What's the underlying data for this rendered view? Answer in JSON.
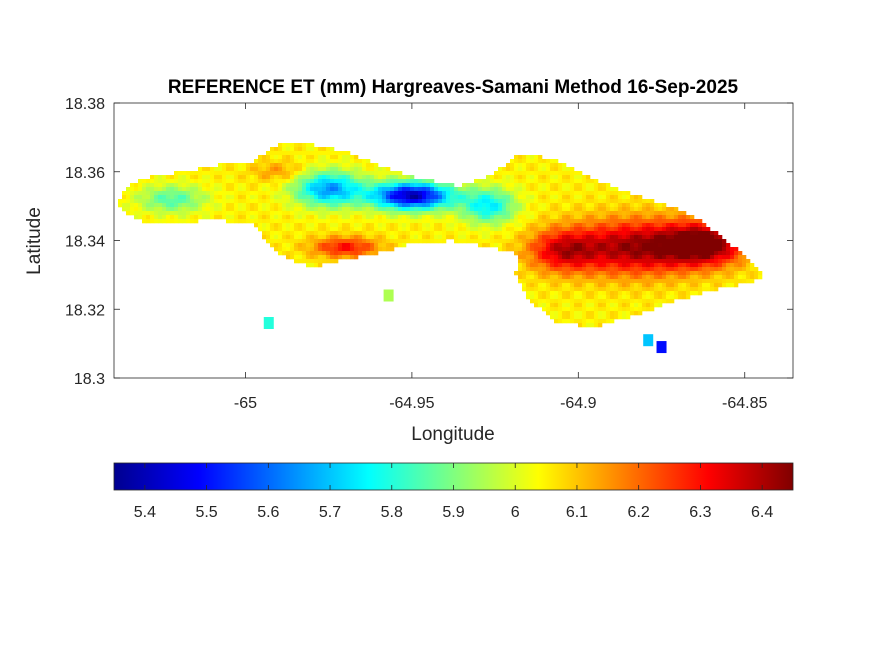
{
  "chart_data": {
    "type": "heatmap",
    "title": "REFERENCE ET (mm) Hargreaves-Samani Method  16-Sep-2025",
    "xlabel": "Longitude",
    "ylabel": "Latitude",
    "xlim": [
      -65.0395,
      -64.8355
    ],
    "ylim": [
      18.3,
      18.38
    ],
    "x_ticks": [
      -65,
      -64.95,
      -64.9,
      -64.85
    ],
    "x_tick_labels": [
      "-65",
      "-64.95",
      "-64.9",
      "-64.85"
    ],
    "y_ticks": [
      18.3,
      18.32,
      18.34,
      18.36,
      18.38
    ],
    "y_tick_labels": [
      "18.3",
      "18.32",
      "18.34",
      "18.36",
      "18.38"
    ],
    "colormap": "jet",
    "colorbar": {
      "orientation": "horizontal",
      "placement": "below",
      "range": [
        5.35,
        6.45
      ],
      "ticks": [
        5.4,
        5.5,
        5.6,
        5.7,
        5.8,
        5.9,
        6.0,
        6.1,
        6.2,
        6.3,
        6.4
      ],
      "tick_labels": [
        "5.4",
        "5.5",
        "5.6",
        "5.7",
        "5.8",
        "5.9",
        "6",
        "6.1",
        "6.2",
        "6.3",
        "6.4"
      ]
    },
    "island_outline": [
      [
        -65.039,
        18.351
      ],
      [
        -65.035,
        18.356
      ],
      [
        -65.028,
        18.359
      ],
      [
        -65.018,
        18.36
      ],
      [
        -65.008,
        18.362
      ],
      [
        -64.998,
        18.363
      ],
      [
        -64.99,
        18.368
      ],
      [
        -64.98,
        18.368
      ],
      [
        -64.97,
        18.366
      ],
      [
        -64.96,
        18.362
      ],
      [
        -64.948,
        18.358
      ],
      [
        -64.936,
        18.356
      ],
      [
        -64.926,
        18.359
      ],
      [
        -64.918,
        18.365
      ],
      [
        -64.908,
        18.364
      ],
      [
        -64.898,
        18.359
      ],
      [
        -64.885,
        18.354
      ],
      [
        -64.872,
        18.35
      ],
      [
        -64.862,
        18.345
      ],
      [
        -64.853,
        18.338
      ],
      [
        -64.846,
        18.332
      ],
      [
        -64.844,
        18.329
      ],
      [
        -64.852,
        18.327
      ],
      [
        -64.862,
        18.325
      ],
      [
        -64.872,
        18.322
      ],
      [
        -64.884,
        18.318
      ],
      [
        -64.895,
        18.315
      ],
      [
        -64.906,
        18.316
      ],
      [
        -64.915,
        18.323
      ],
      [
        -64.919,
        18.33
      ],
      [
        -64.918,
        18.336
      ],
      [
        -64.926,
        18.338
      ],
      [
        -64.938,
        18.34
      ],
      [
        -64.95,
        18.339
      ],
      [
        -64.962,
        18.336
      ],
      [
        -64.972,
        18.334
      ],
      [
        -64.98,
        18.332
      ],
      [
        -64.99,
        18.336
      ],
      [
        -64.998,
        18.345
      ],
      [
        -65.01,
        18.346
      ],
      [
        -65.022,
        18.345
      ],
      [
        -65.03,
        18.345
      ],
      [
        -65.036,
        18.348
      ]
    ],
    "value_field_centers": [
      {
        "lon": -64.95,
        "lat": 18.353,
        "value": 5.4,
        "spread": [
          0.012,
          0.004
        ]
      },
      {
        "lon": -64.975,
        "lat": 18.355,
        "value": 5.65,
        "spread": [
          0.01,
          0.005
        ]
      },
      {
        "lon": -64.927,
        "lat": 18.35,
        "value": 5.75,
        "spread": [
          0.008,
          0.005
        ]
      },
      {
        "lon": -65.022,
        "lat": 18.352,
        "value": 5.85,
        "spread": [
          0.01,
          0.004
        ]
      },
      {
        "lon": -64.883,
        "lat": 18.338,
        "value": 6.42,
        "spread": [
          0.02,
          0.008
        ]
      },
      {
        "lon": -64.862,
        "lat": 18.339,
        "value": 6.45,
        "spread": [
          0.012,
          0.006
        ]
      },
      {
        "lon": -64.905,
        "lat": 18.337,
        "value": 6.3,
        "spread": [
          0.01,
          0.006
        ]
      },
      {
        "lon": -64.97,
        "lat": 18.338,
        "value": 6.3,
        "spread": [
          0.01,
          0.003
        ]
      },
      {
        "lon": -64.99,
        "lat": 18.36,
        "value": 6.15,
        "spread": [
          0.008,
          0.003
        ]
      }
    ],
    "field_background_value": 6.05,
    "offshore_patches": [
      {
        "lon": -64.957,
        "lat": 18.324,
        "value": 5.95
      },
      {
        "lon": -64.993,
        "lat": 18.316,
        "value": 5.8
      },
      {
        "lon": -64.879,
        "lat": 18.311,
        "value": 5.7
      },
      {
        "lon": -64.875,
        "lat": 18.309,
        "value": 5.5
      }
    ]
  }
}
